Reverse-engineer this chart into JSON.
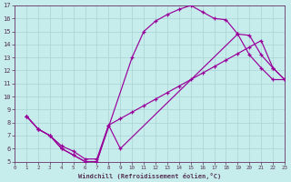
{
  "xlabel": "Windchill (Refroidissement éolien,°C)",
  "background_color": "#c6ecec",
  "grid_color": "#a8d4d4",
  "line_color": "#990099",
  "xlim": [
    0,
    23
  ],
  "ylim": [
    5,
    17
  ],
  "xticks": [
    0,
    1,
    2,
    3,
    4,
    5,
    6,
    7,
    8,
    9,
    10,
    11,
    12,
    13,
    14,
    15,
    16,
    17,
    18,
    19,
    20,
    21,
    22,
    23
  ],
  "yticks": [
    5,
    6,
    7,
    8,
    9,
    10,
    11,
    12,
    13,
    14,
    15,
    16,
    17
  ],
  "curve1_x": [
    1,
    2,
    3,
    4,
    5,
    6,
    7,
    10,
    11,
    12,
    13,
    14,
    15,
    16,
    17,
    18,
    19,
    20,
    21,
    22,
    23
  ],
  "curve1_y": [
    8.5,
    7.5,
    7.0,
    6.0,
    5.5,
    5.0,
    5.0,
    13.0,
    15.0,
    15.8,
    16.3,
    16.7,
    17.0,
    16.5,
    16.0,
    15.9,
    14.8,
    13.2,
    12.2,
    11.3,
    11.3
  ],
  "curve2_x": [
    1,
    2,
    3,
    4,
    5,
    6,
    7,
    8,
    9,
    10,
    11,
    12,
    13,
    14,
    15,
    16,
    17,
    18,
    19,
    20,
    21,
    22,
    23
  ],
  "curve2_y": [
    8.5,
    7.5,
    7.0,
    6.2,
    5.8,
    5.2,
    5.2,
    7.8,
    8.3,
    8.8,
    9.3,
    9.8,
    10.3,
    10.8,
    11.3,
    11.8,
    12.3,
    12.8,
    13.3,
    13.8,
    14.3,
    12.2,
    11.3
  ],
  "curve3_x": [
    1,
    2,
    3,
    4,
    5,
    6,
    7,
    8,
    9,
    19,
    20,
    21,
    22,
    23
  ],
  "curve3_y": [
    8.5,
    7.5,
    7.0,
    6.0,
    5.5,
    5.0,
    5.0,
    7.8,
    6.0,
    14.8,
    14.7,
    13.2,
    12.2,
    11.3
  ]
}
